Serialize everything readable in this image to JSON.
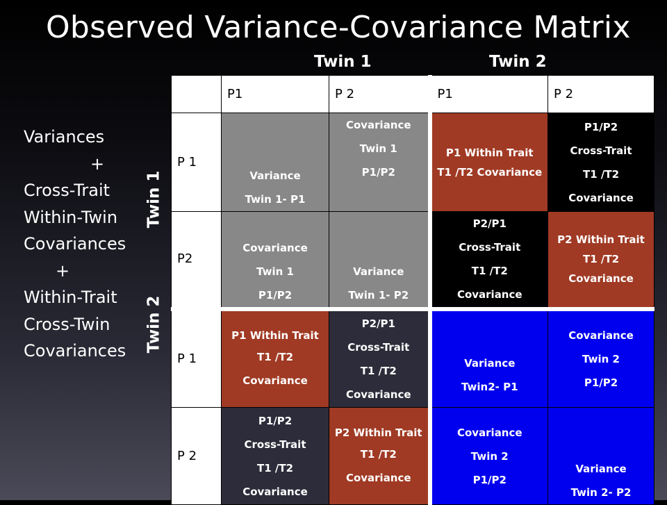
{
  "title": "Observed Variance-Covariance Matrix",
  "column_groups": [
    "Twin 1",
    "Twin 2"
  ],
  "row_groups": [
    "Twin 1",
    "Twin 2"
  ],
  "side_list": [
    "Variances",
    "+",
    "Cross-Trait",
    "Within-Twin",
    "Covariances",
    "+",
    "Within-Trait",
    "Cross-Twin",
    "Covariances"
  ],
  "column_headers": [
    "P1",
    "P 2",
    "P1",
    "P 2"
  ],
  "rows": [
    {
      "label": "P 1",
      "cells": [
        [
          "Variance",
          "Twin 1- P1"
        ],
        [
          "Covariance",
          "Twin 1",
          "P1/P2"
        ],
        [
          "P1 Within Trait",
          "T1 /T2 Covariance"
        ],
        [
          "P1/P2",
          "Cross-Trait",
          "T1 /T2",
          "Covariance"
        ]
      ]
    },
    {
      "label": "P2",
      "cells": [
        [
          "Covariance",
          "Twin 1",
          "P1/P2"
        ],
        [
          "Variance",
          "Twin 1- P2"
        ],
        [
          "P2/P1",
          "Cross-Trait",
          "T1 /T2",
          "Covariance"
        ],
        [
          "P2 Within Trait",
          "T1 /T2 Covariance"
        ]
      ]
    },
    {
      "label": "P 1",
      "cells": [
        [
          "P1 Within Trait",
          "T1 /T2",
          "Covariance"
        ],
        [
          "P2/P1",
          "Cross-Trait",
          "T1 /T2",
          "Covariance"
        ],
        [
          "Variance",
          "Twin2- P1"
        ],
        [
          "Covariance",
          "Twin 2",
          "P1/P2"
        ]
      ]
    },
    {
      "label": "P 2",
      "cells": [
        [
          "P1/P2",
          "Cross-Trait",
          "T1 /T2",
          "Covariance"
        ],
        [
          "P2 Within Trait",
          "T1 /T2",
          "Covariance"
        ],
        [
          "Covariance",
          "Twin 2",
          "P1/P2"
        ],
        [
          "Variance",
          "Twin 2- P2"
        ]
      ]
    }
  ],
  "colors": {
    "variance_twin1": "#888888",
    "within_trait": "#a03a24",
    "twin2": "#0000ee",
    "cross_trait": "#000000"
  }
}
